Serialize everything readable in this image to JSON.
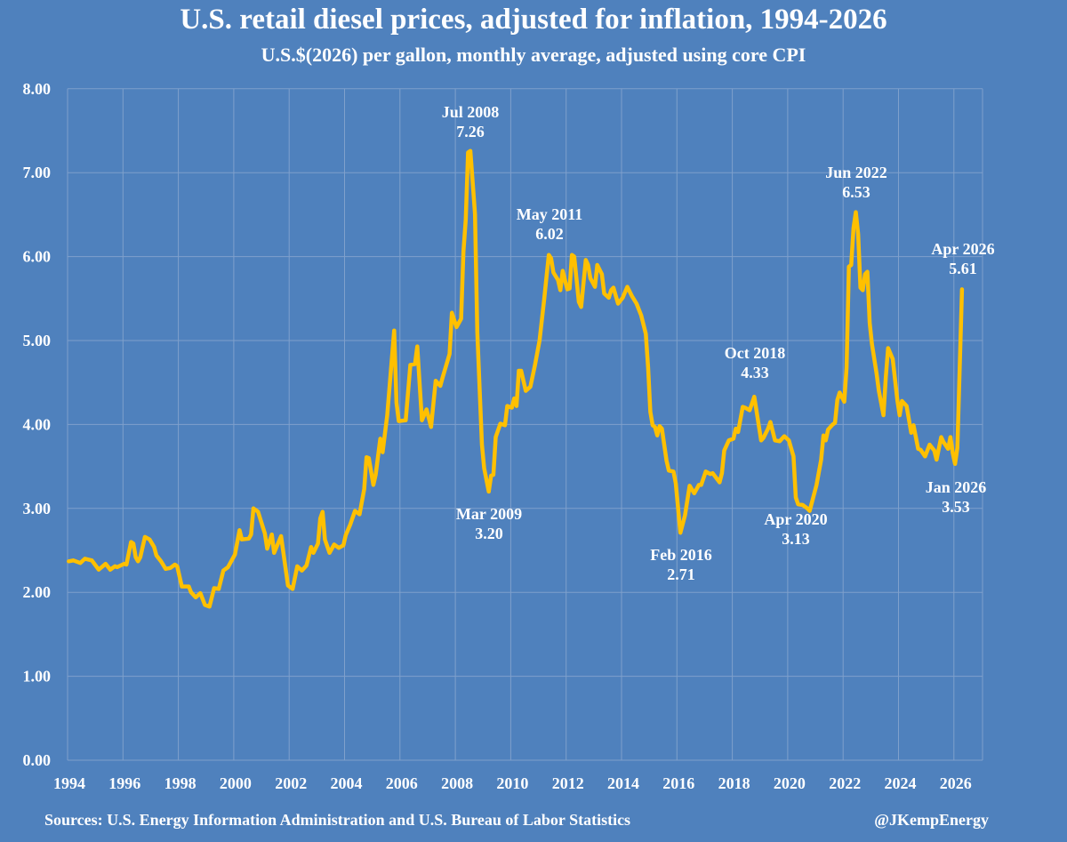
{
  "chart_data": {
    "type": "line",
    "title": "U.S. retail diesel prices, adjusted for inflation, 1994-2026",
    "subtitle": "U.S.$(2026) per gallon, monthly average, adjusted using core CPI",
    "xlabel": "",
    "ylabel": "",
    "xlim": [
      1994,
      2027
    ],
    "ylim": [
      0,
      8
    ],
    "x_ticks": [
      "1994",
      "1996",
      "1998",
      "2000",
      "2002",
      "2004",
      "2006",
      "2008",
      "2010",
      "2012",
      "2014",
      "2016",
      "2018",
      "2020",
      "2022",
      "2024",
      "2026"
    ],
    "y_ticks": [
      "0.00",
      "1.00",
      "2.00",
      "3.00",
      "4.00",
      "5.00",
      "6.00",
      "7.00",
      "8.00"
    ],
    "grid": true,
    "colors": {
      "background": "#4f81bd",
      "line": "#ffc000",
      "grid": "#7fa0cc",
      "text": "#ffffff"
    },
    "series": [
      {
        "points": [
          [
            "1994-01",
            2.37
          ],
          [
            "1994-03",
            2.38
          ],
          [
            "1994-06",
            2.35
          ],
          [
            "1994-08",
            2.4
          ],
          [
            "1994-11",
            2.38
          ],
          [
            "1995-02",
            2.27
          ],
          [
            "1995-05",
            2.34
          ],
          [
            "1995-07",
            2.27
          ],
          [
            "1995-09",
            2.31
          ],
          [
            "1995-10",
            2.3
          ],
          [
            "1996-01",
            2.34
          ],
          [
            "1996-02",
            2.33
          ],
          [
            "1996-04",
            2.6
          ],
          [
            "1996-05",
            2.58
          ],
          [
            "1996-06",
            2.42
          ],
          [
            "1996-07",
            2.37
          ],
          [
            "1996-08",
            2.42
          ],
          [
            "1996-10",
            2.66
          ],
          [
            "1996-12",
            2.63
          ],
          [
            "1997-02",
            2.54
          ],
          [
            "1997-03",
            2.44
          ],
          [
            "1997-05",
            2.37
          ],
          [
            "1997-07",
            2.28
          ],
          [
            "1997-09",
            2.29
          ],
          [
            "1997-11",
            2.33
          ],
          [
            "1997-12",
            2.31
          ],
          [
            "1998-02",
            2.07
          ],
          [
            "1998-05",
            2.07
          ],
          [
            "1998-06",
            2.0
          ],
          [
            "1998-08",
            1.94
          ],
          [
            "1998-10",
            1.99
          ],
          [
            "1998-12",
            1.85
          ],
          [
            "1999-02",
            1.83
          ],
          [
            "1999-04",
            2.05
          ],
          [
            "1999-06",
            2.04
          ],
          [
            "1999-08",
            2.26
          ],
          [
            "1999-10",
            2.3
          ],
          [
            "2000-01",
            2.45
          ],
          [
            "2000-03",
            2.74
          ],
          [
            "2000-04",
            2.63
          ],
          [
            "2000-07",
            2.64
          ],
          [
            "2000-08",
            2.69
          ],
          [
            "2000-09",
            3.0
          ],
          [
            "2000-11",
            2.96
          ],
          [
            "2001-02",
            2.7
          ],
          [
            "2001-03",
            2.52
          ],
          [
            "2001-05",
            2.69
          ],
          [
            "2001-06",
            2.47
          ],
          [
            "2001-09",
            2.67
          ],
          [
            "2001-12",
            2.08
          ],
          [
            "2002-02",
            2.04
          ],
          [
            "2002-04",
            2.31
          ],
          [
            "2002-06",
            2.26
          ],
          [
            "2002-08",
            2.32
          ],
          [
            "2002-10",
            2.54
          ],
          [
            "2002-11",
            2.47
          ],
          [
            "2003-01",
            2.58
          ],
          [
            "2003-02",
            2.88
          ],
          [
            "2003-03",
            2.96
          ],
          [
            "2003-04",
            2.63
          ],
          [
            "2003-06",
            2.47
          ],
          [
            "2003-08",
            2.57
          ],
          [
            "2003-10",
            2.53
          ],
          [
            "2003-12",
            2.56
          ],
          [
            "2004-01",
            2.68
          ],
          [
            "2004-03",
            2.81
          ],
          [
            "2004-05",
            2.97
          ],
          [
            "2004-07",
            2.93
          ],
          [
            "2004-09",
            3.23
          ],
          [
            "2004-10",
            3.61
          ],
          [
            "2004-11",
            3.6
          ],
          [
            "2005-01",
            3.28
          ],
          [
            "2005-02",
            3.4
          ],
          [
            "2005-04",
            3.83
          ],
          [
            "2005-05",
            3.67
          ],
          [
            "2005-07",
            4.11
          ],
          [
            "2005-10",
            5.12
          ],
          [
            "2005-11",
            4.26
          ],
          [
            "2005-12",
            4.04
          ],
          [
            "2006-03",
            4.05
          ],
          [
            "2006-05",
            4.71
          ],
          [
            "2006-07",
            4.72
          ],
          [
            "2006-08",
            4.93
          ],
          [
            "2006-10",
            4.05
          ],
          [
            "2006-12",
            4.18
          ],
          [
            "2007-02",
            3.97
          ],
          [
            "2007-04",
            4.52
          ],
          [
            "2007-06",
            4.46
          ],
          [
            "2007-07",
            4.56
          ],
          [
            "2007-10",
            4.84
          ],
          [
            "2007-11",
            5.33
          ],
          [
            "2008-01",
            5.16
          ],
          [
            "2008-03",
            5.26
          ],
          [
            "2008-04",
            6.06
          ],
          [
            "2008-05",
            6.44
          ],
          [
            "2008-06",
            7.24
          ],
          [
            "2008-07",
            7.26
          ],
          [
            "2008-09",
            6.51
          ],
          [
            "2008-10",
            5.1
          ],
          [
            "2008-12",
            3.76
          ],
          [
            "2009-01",
            3.48
          ],
          [
            "2009-03",
            3.2
          ],
          [
            "2009-04",
            3.39
          ],
          [
            "2009-05",
            3.4
          ],
          [
            "2009-06",
            3.85
          ],
          [
            "2009-08",
            4.01
          ],
          [
            "2009-10",
            3.99
          ],
          [
            "2009-11",
            4.22
          ],
          [
            "2010-01",
            4.2
          ],
          [
            "2010-02",
            4.31
          ],
          [
            "2010-03",
            4.22
          ],
          [
            "2010-04",
            4.64
          ],
          [
            "2010-05",
            4.64
          ],
          [
            "2010-07",
            4.4
          ],
          [
            "2010-09",
            4.45
          ],
          [
            "2010-11",
            4.71
          ],
          [
            "2011-01",
            5.0
          ],
          [
            "2011-03",
            5.49
          ],
          [
            "2011-05",
            6.02
          ],
          [
            "2011-06",
            5.98
          ],
          [
            "2011-07",
            5.81
          ],
          [
            "2011-09",
            5.72
          ],
          [
            "2011-10",
            5.6
          ],
          [
            "2011-11",
            5.83
          ],
          [
            "2012-01",
            5.61
          ],
          [
            "2012-02",
            5.62
          ],
          [
            "2012-03",
            6.02
          ],
          [
            "2012-04",
            6.0
          ],
          [
            "2012-06",
            5.46
          ],
          [
            "2012-07",
            5.4
          ],
          [
            "2012-09",
            5.96
          ],
          [
            "2012-10",
            5.9
          ],
          [
            "2012-11",
            5.74
          ],
          [
            "2013-01",
            5.64
          ],
          [
            "2013-02",
            5.9
          ],
          [
            "2013-04",
            5.79
          ],
          [
            "2013-05",
            5.56
          ],
          [
            "2013-07",
            5.51
          ],
          [
            "2013-08",
            5.6
          ],
          [
            "2013-09",
            5.63
          ],
          [
            "2013-11",
            5.44
          ],
          [
            "2014-01",
            5.51
          ],
          [
            "2014-03",
            5.64
          ],
          [
            "2014-05",
            5.53
          ],
          [
            "2014-07",
            5.44
          ],
          [
            "2014-09",
            5.3
          ],
          [
            "2014-11",
            5.08
          ],
          [
            "2014-12",
            4.68
          ],
          [
            "2015-01",
            4.15
          ],
          [
            "2015-02",
            3.99
          ],
          [
            "2015-03",
            3.97
          ],
          [
            "2015-04",
            3.87
          ],
          [
            "2015-05",
            3.98
          ],
          [
            "2015-06",
            3.95
          ],
          [
            "2015-08",
            3.57
          ],
          [
            "2015-09",
            3.45
          ],
          [
            "2015-11",
            3.44
          ],
          [
            "2015-12",
            3.3
          ],
          [
            "2016-02",
            2.71
          ],
          [
            "2016-04",
            2.92
          ],
          [
            "2016-06",
            3.27
          ],
          [
            "2016-08",
            3.18
          ],
          [
            "2016-10",
            3.28
          ],
          [
            "2016-11",
            3.28
          ],
          [
            "2017-01",
            3.44
          ],
          [
            "2017-03",
            3.41
          ],
          [
            "2017-04",
            3.42
          ],
          [
            "2017-07",
            3.31
          ],
          [
            "2017-08",
            3.42
          ],
          [
            "2017-09",
            3.69
          ],
          [
            "2017-11",
            3.81
          ],
          [
            "2018-01",
            3.83
          ],
          [
            "2018-02",
            3.95
          ],
          [
            "2018-03",
            3.91
          ],
          [
            "2018-05",
            4.21
          ],
          [
            "2018-06",
            4.2
          ],
          [
            "2018-08",
            4.17
          ],
          [
            "2018-10",
            4.33
          ],
          [
            "2019-01",
            3.81
          ],
          [
            "2019-02",
            3.84
          ],
          [
            "2019-04",
            3.95
          ],
          [
            "2019-05",
            4.03
          ],
          [
            "2019-07",
            3.81
          ],
          [
            "2019-09",
            3.8
          ],
          [
            "2019-11",
            3.86
          ],
          [
            "2020-01",
            3.81
          ],
          [
            "2020-03",
            3.62
          ],
          [
            "2020-04",
            3.13
          ],
          [
            "2020-05",
            3.05
          ],
          [
            "2020-07",
            3.04
          ],
          [
            "2020-09",
            3.0
          ],
          [
            "2020-10",
            2.97
          ],
          [
            "2021-01",
            3.28
          ],
          [
            "2021-03",
            3.58
          ],
          [
            "2021-04",
            3.87
          ],
          [
            "2021-05",
            3.81
          ],
          [
            "2021-06",
            3.94
          ],
          [
            "2021-08",
            4.0
          ],
          [
            "2021-09",
            4.02
          ],
          [
            "2021-10",
            4.29
          ],
          [
            "2021-11",
            4.38
          ],
          [
            "2022-01",
            4.27
          ],
          [
            "2022-02",
            4.68
          ],
          [
            "2022-03",
            5.88
          ],
          [
            "2022-04",
            5.9
          ],
          [
            "2022-05",
            6.34
          ],
          [
            "2022-06",
            6.53
          ],
          [
            "2022-07",
            6.27
          ],
          [
            "2022-08",
            5.63
          ],
          [
            "2022-09",
            5.6
          ],
          [
            "2022-10",
            5.79
          ],
          [
            "2022-11",
            5.82
          ],
          [
            "2022-12",
            5.21
          ],
          [
            "2023-01",
            4.96
          ],
          [
            "2023-03",
            4.61
          ],
          [
            "2023-04",
            4.4
          ],
          [
            "2023-06",
            4.11
          ],
          [
            "2023-07",
            4.56
          ],
          [
            "2023-08",
            4.91
          ],
          [
            "2023-10",
            4.78
          ],
          [
            "2023-12",
            4.29
          ],
          [
            "2024-01",
            4.11
          ],
          [
            "2024-02",
            4.28
          ],
          [
            "2024-04",
            4.22
          ],
          [
            "2024-06",
            3.9
          ],
          [
            "2024-07",
            3.99
          ],
          [
            "2024-09",
            3.71
          ],
          [
            "2024-10",
            3.7
          ],
          [
            "2024-12",
            3.62
          ],
          [
            "2025-02",
            3.76
          ],
          [
            "2025-04",
            3.69
          ],
          [
            "2025-05",
            3.58
          ],
          [
            "2025-07",
            3.85
          ],
          [
            "2025-08",
            3.79
          ],
          [
            "2025-10",
            3.71
          ],
          [
            "2025-11",
            3.85
          ],
          [
            "2025-12",
            3.66
          ],
          [
            "2026-01",
            3.53
          ],
          [
            "2026-02",
            3.72
          ],
          [
            "2026-04",
            5.61
          ]
        ]
      }
    ],
    "annotations": [
      {
        "label": "Jul 2008",
        "value": "7.26"
      },
      {
        "label": "May 2011",
        "value": "6.02"
      },
      {
        "label": "Mar 2009",
        "value": "3.20"
      },
      {
        "label": "Feb 2016",
        "value": "2.71"
      },
      {
        "label": "Oct 2018",
        "value": "4.33"
      },
      {
        "label": "Apr 2020",
        "value": "3.13"
      },
      {
        "label": "Jun 2022",
        "value": "6.53"
      },
      {
        "label": "Apr 2026",
        "value": "5.61"
      },
      {
        "label": "Jan 2026",
        "value": "3.53"
      }
    ]
  },
  "footer": {
    "sources": "Sources: U.S. Energy Information Administration and U.S. Bureau of Labor Statistics",
    "handle": "@JKempEnergy"
  }
}
